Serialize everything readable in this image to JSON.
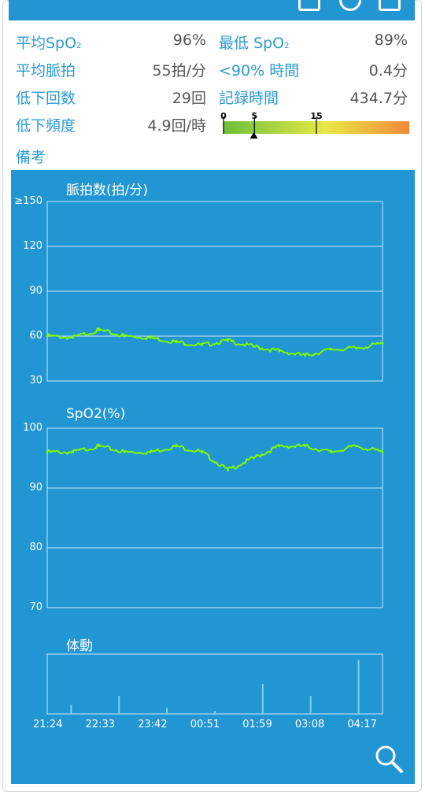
{
  "summary": {
    "rows": [
      {
        "left_label": "平均SpO",
        "left_sub": "2",
        "left_value": "96%",
        "right_label": "最低 SpO",
        "right_sub": "2",
        "right_value": "89%"
      },
      {
        "left_label": "平均脈拍",
        "left_sub": "",
        "left_value": "55拍/分",
        "right_label": "<90% 時間",
        "right_sub": "",
        "right_value": "0.4分"
      },
      {
        "left_label": "低下回数",
        "left_sub": "",
        "left_value": "29回",
        "right_label": "記録時間",
        "right_sub": "",
        "right_value": "434.7分"
      },
      {
        "left_label": "低下頻度",
        "left_sub": "",
        "left_value": "4.9回/時",
        "right_label": "",
        "right_sub": "",
        "right_value": ""
      }
    ],
    "memo_label": "備考"
  },
  "severity_scale": {
    "ticks": [
      "0",
      "5",
      "15"
    ],
    "tick_values": [
      0,
      5,
      15
    ],
    "max": 30,
    "marker_value": 4.9,
    "colors": [
      "#6cbf3a",
      "#e8e847",
      "#f08a3a"
    ]
  },
  "charts": {
    "pulse": {
      "title": "脈拍数(拍/分)",
      "yticks": [
        "≥150",
        "120",
        "90",
        "60",
        "30"
      ]
    },
    "spo2": {
      "title": "SpO2(%)",
      "yticks": [
        "100",
        "90",
        "80",
        "70"
      ]
    },
    "movement": {
      "title": "体動"
    },
    "xticks": [
      "21:24",
      "22:33",
      "23:42",
      "00:51",
      "01:59",
      "03:08",
      "04:17"
    ]
  },
  "chart_data": [
    {
      "type": "line",
      "title": "脈拍数(拍/分)",
      "ylabel": "脈拍数(拍/分)",
      "ylim": [
        30,
        150
      ],
      "x": [
        "21:24",
        "21:59",
        "22:33",
        "23:08",
        "23:42",
        "00:17",
        "00:51",
        "01:25",
        "01:59",
        "02:34",
        "03:08",
        "03:43",
        "04:17",
        "04:39"
      ],
      "series": [
        {
          "name": "脈拍数",
          "values": [
            60,
            59,
            64,
            60,
            59,
            56,
            54,
            57,
            53,
            50,
            47,
            51,
            52,
            55
          ],
          "color": "#7cfc00"
        }
      ]
    },
    {
      "type": "line",
      "title": "SpO2(%)",
      "ylabel": "SpO2(%)",
      "ylim": [
        70,
        100
      ],
      "x": [
        "21:24",
        "21:59",
        "22:33",
        "23:08",
        "23:42",
        "00:17",
        "00:51",
        "01:25",
        "01:59",
        "02:34",
        "03:08",
        "03:43",
        "04:17",
        "04:39"
      ],
      "series": [
        {
          "name": "SpO2",
          "values": [
            96,
            96,
            97,
            96,
            96,
            97,
            96,
            93,
            95,
            97,
            97,
            96,
            97,
            96
          ],
          "color": "#7cfc00"
        }
      ]
    },
    {
      "type": "bar",
      "title": "体動",
      "x": [
        "21:24",
        "22:33",
        "23:42",
        "00:51",
        "01:59",
        "03:08",
        "04:17"
      ],
      "series": [
        {
          "name": "体動",
          "values": [
            0.15,
            0.3,
            0.1,
            0.05,
            0.5,
            0.3,
            0.9
          ],
          "color": "#7ad3f0"
        }
      ]
    }
  ],
  "actions": {
    "zoom_icon": "magnifier-icon"
  }
}
